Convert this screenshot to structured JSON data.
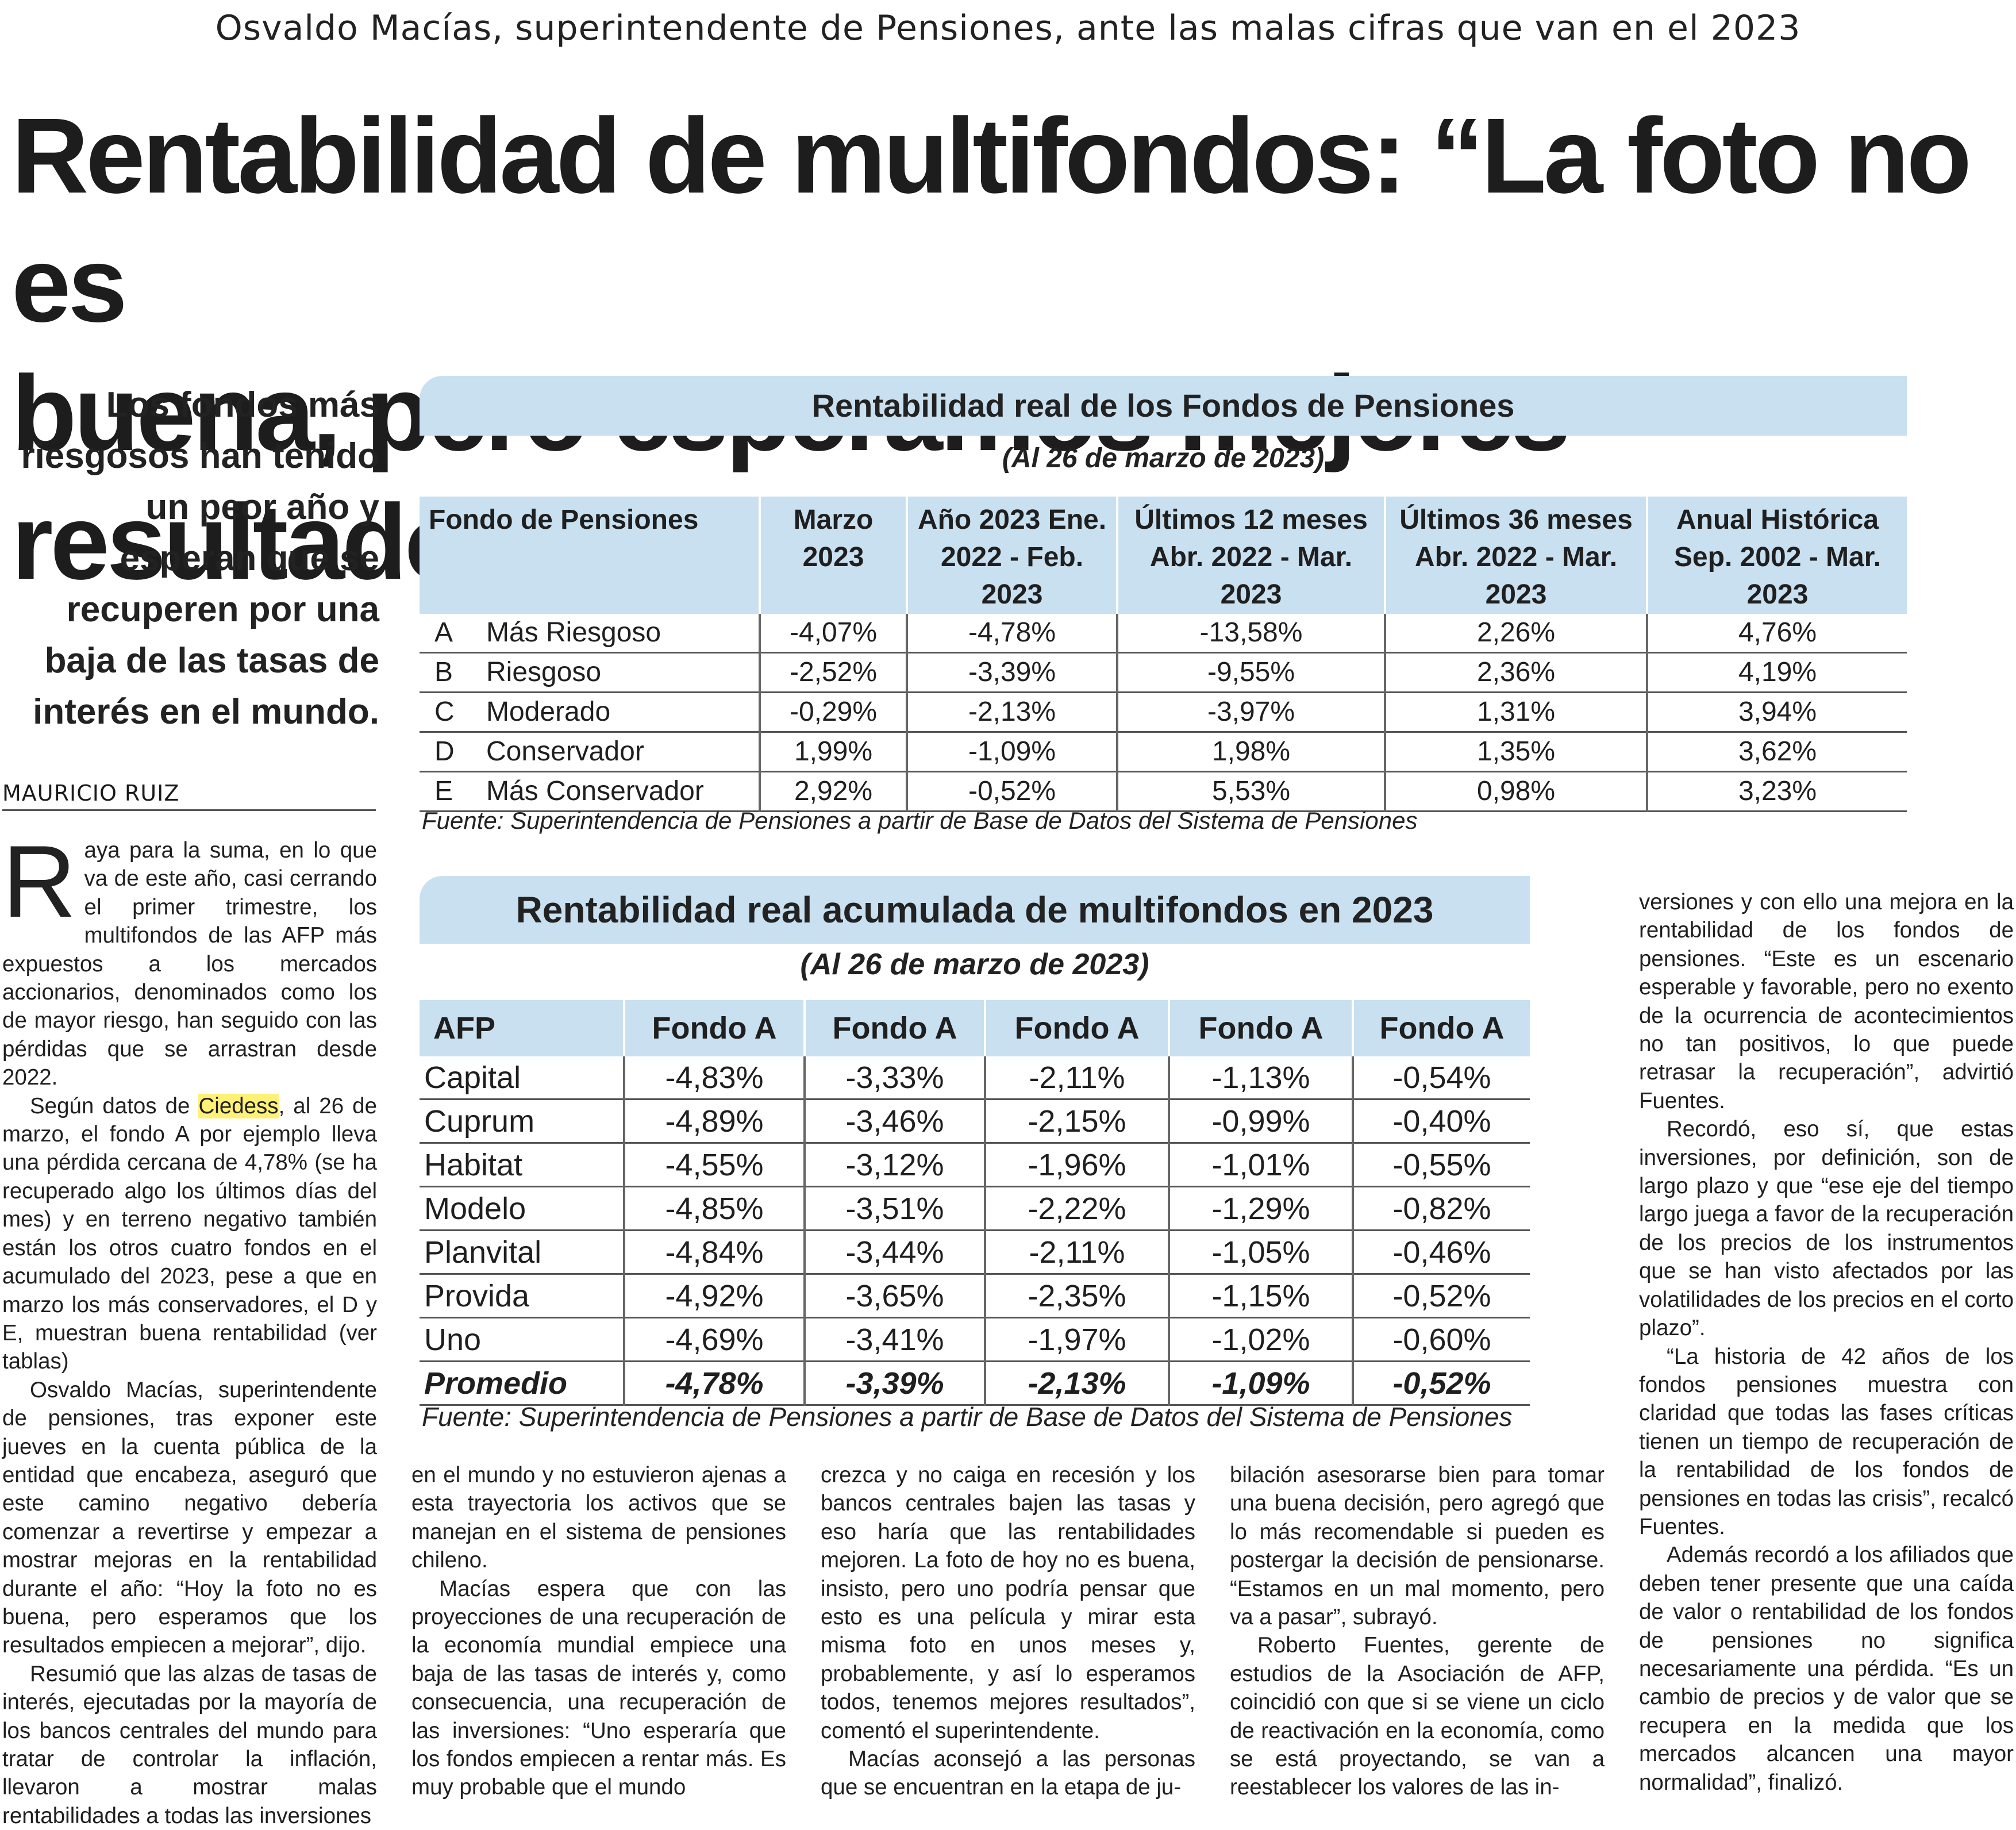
{
  "article": {
    "kicker": "Osvaldo Macías, superintendente de Pensiones, ante las malas cifras que van en el 2023",
    "headline_line1": "Rentabilidad de multifondos: “La foto no es",
    "headline_line2": "buena, pero esperamos mejores resultados”",
    "subhead": "Los fondos más riesgosos han tenido un peor año y esperan que se recuperen por una baja de las tasas de interés en el mundo.",
    "byline": "MAURICIO RUIZ"
  },
  "table1": {
    "title": "Rentabilidad real de los Fondos de Pensiones",
    "subtitle": "(Al 26 de marzo de 2023)",
    "headers": [
      "Fondo de Pensiones",
      "Marzo 2023",
      "Año 2023 Ene. 2022 - Feb. 2023",
      "Últimos 12 meses Abr. 2022 - Mar. 2023",
      "Últimos 36 meses Abr. 2022 - Mar. 2023",
      "Anual Histórica Sep. 2002 - Mar. 2023"
    ],
    "rows": [
      {
        "letter": "A",
        "name": "Más Riesgoso",
        "values": [
          "-4,07%",
          "-4,78%",
          "-13,58%",
          "2,26%",
          "4,76%"
        ]
      },
      {
        "letter": "B",
        "name": "Riesgoso",
        "values": [
          "-2,52%",
          "-3,39%",
          "-9,55%",
          "2,36%",
          "4,19%"
        ]
      },
      {
        "letter": "C",
        "name": "Moderado",
        "values": [
          "-0,29%",
          "-2,13%",
          "-3,97%",
          "1,31%",
          "3,94%"
        ]
      },
      {
        "letter": "D",
        "name": "Conservador",
        "values": [
          "1,99%",
          "-1,09%",
          "1,98%",
          "1,35%",
          "3,62%"
        ]
      },
      {
        "letter": "E",
        "name": "Más Conservador",
        "values": [
          "2,92%",
          "-0,52%",
          "5,53%",
          "0,98%",
          "3,23%"
        ]
      }
    ],
    "source": "Fuente: Superintendencia de Pensiones a partir de Base de Datos del Sistema de Pensiones"
  },
  "table2": {
    "title": "Rentabilidad real acumulada de multifondos en 2023",
    "subtitle": "(Al 26 de marzo de 2023)",
    "headers": [
      "AFP",
      "Fondo A",
      "Fondo A",
      "Fondo A",
      "Fondo A",
      "Fondo A"
    ],
    "rows": [
      {
        "afp": "Capital",
        "values": [
          "-4,83%",
          "-3,33%",
          "-2,11%",
          "-1,13%",
          "-0,54%"
        ]
      },
      {
        "afp": "Cuprum",
        "values": [
          "-4,89%",
          "-3,46%",
          "-2,15%",
          "-0,99%",
          "-0,40%"
        ]
      },
      {
        "afp": "Habitat",
        "values": [
          "-4,55%",
          "-3,12%",
          "-1,96%",
          "-1,01%",
          "-0,55%"
        ]
      },
      {
        "afp": "Modelo",
        "values": [
          "-4,85%",
          "-3,51%",
          "-2,22%",
          "-1,29%",
          "-0,82%"
        ]
      },
      {
        "afp": "Planvital",
        "values": [
          "-4,84%",
          "-3,44%",
          "-2,11%",
          "-1,05%",
          "-0,46%"
        ]
      },
      {
        "afp": "Provida",
        "values": [
          "-4,92%",
          "-3,65%",
          "-2,35%",
          "-1,15%",
          "-0,52%"
        ]
      },
      {
        "afp": "Uno",
        "values": [
          "-4,69%",
          "-3,41%",
          "-1,97%",
          "-1,02%",
          "-0,60%"
        ]
      },
      {
        "afp": "Promedio",
        "values": [
          "-4,78%",
          "-3,39%",
          "-2,13%",
          "-1,09%",
          "-0,52%"
        ]
      }
    ],
    "source": "Fuente: Superintendencia de Pensiones a partir de Base de Datos del Sistema de Pensiones"
  },
  "body": {
    "col1": {
      "dropcap": "R",
      "p1": "aya para la suma, en lo que va de este año, casi cerrando el primer trimestre, los multifondos de las AFP más expuestos a los mercados accionarios, denominados como los de mayor riesgo, han seguido con las pérdidas que se arrastran desde 2022.",
      "p2a": "Según datos de ",
      "p2_highlight": "Ciedess",
      "p2b": ", al 26 de marzo, el fondo A por ejemplo lleva una pérdida cercana de 4,78% (se ha recuperado algo los últimos días del mes) y en terreno negativo también están los otros cuatro fondos en el acumulado del 2023, pese a que en marzo los más conservadores, el D y E, muestran buena rentabilidad (ver tablas)",
      "p3": "Osvaldo Macías, superintendente de pensiones, tras exponer este jueves en la cuenta pública de la entidad que encabeza, aseguró que este camino negativo debería comenzar a revertirse y empezar a mostrar mejoras en la rentabilidad durante el año: “Hoy la foto no es buena, pero esperamos que los resultados empiecen a mejorar”, dijo.",
      "p4": "Resumió que las alzas de tasas de interés, ejecutadas por la mayoría de los bancos centrales del mundo para tratar de controlar la inflación, llevaron a mostrar malas rentabilidades a todas las inversiones"
    },
    "col2": {
      "p1": "en el mundo y no estuvieron ajenas a esta trayectoria los activos que se manejan en el sistema de pensiones chileno.",
      "p2": "Macías espera que con las proyecciones de una recuperación de la economía mundial empiece una baja de las tasas de interés y, como consecuencia, una recuperación de las inversiones: “Uno esperaría que los fondos empiecen a rentar más. Es muy probable que el mundo"
    },
    "col3": {
      "p1": "crezca y no caiga en recesión y los bancos centrales bajen las tasas y eso haría que las rentabilidades mejoren. La foto de hoy no es buena, insisto, pero uno podría pensar que esto es una película y mirar esta misma foto en unos meses y, probablemente, y así lo esperamos todos, tenemos mejores resultados”, comentó el superintendente.",
      "p2": "Macías aconsejó a las personas que se encuentran en la etapa de ju-"
    },
    "col4": {
      "p1": "bilación asesorarse bien para tomar una buena decisión, pero agregó que lo más recomendable si pueden es postergar la decisión de pensionarse. “Estamos en un mal momento, pero va a pasar”, subrayó.",
      "p2": "Roberto Fuentes, gerente de estudios de la Asociación de AFP, coincidió con que si se viene un ciclo de reactivación en la economía, como se está proyectando, se van a reestablecer los valores de las in-"
    },
    "col5": {
      "p1": "versiones y con ello una mejora en la rentabilidad de los fondos de pensiones. “Este es un escenario esperable y favorable, pero no exento de la ocurrencia de acontecimientos no tan positivos, lo que puede retrasar la recuperación”, advirtió Fuentes.",
      "p2": "Recordó, eso sí, que estas inversiones, por definición, son de largo plazo y que “ese eje del tiempo largo juega a favor de la recuperación de los precios de los instrumentos que se han visto afectados por las volatilidades de los precios en el corto plazo”.",
      "p3": "“La historia de 42 años de los fondos pensiones muestra con claridad que todas las fases críticas tienen un tiempo de recuperación de la rentabilidad de los fondos de pensiones en todas las crisis”, recalcó Fuentes.",
      "p4": "Además recordó a los afiliados que deben tener presente que una caída de valor o rentabilidad de los fondos de pensiones no significa necesariamente una pérdida. “Es un cambio de precios y de valor que se recupera en la medida que los mercados alcancen una mayor normalidad”, finalizó."
    }
  },
  "colors": {
    "table_header_bg": "#c9e0f0",
    "highlight": "#fff176"
  }
}
